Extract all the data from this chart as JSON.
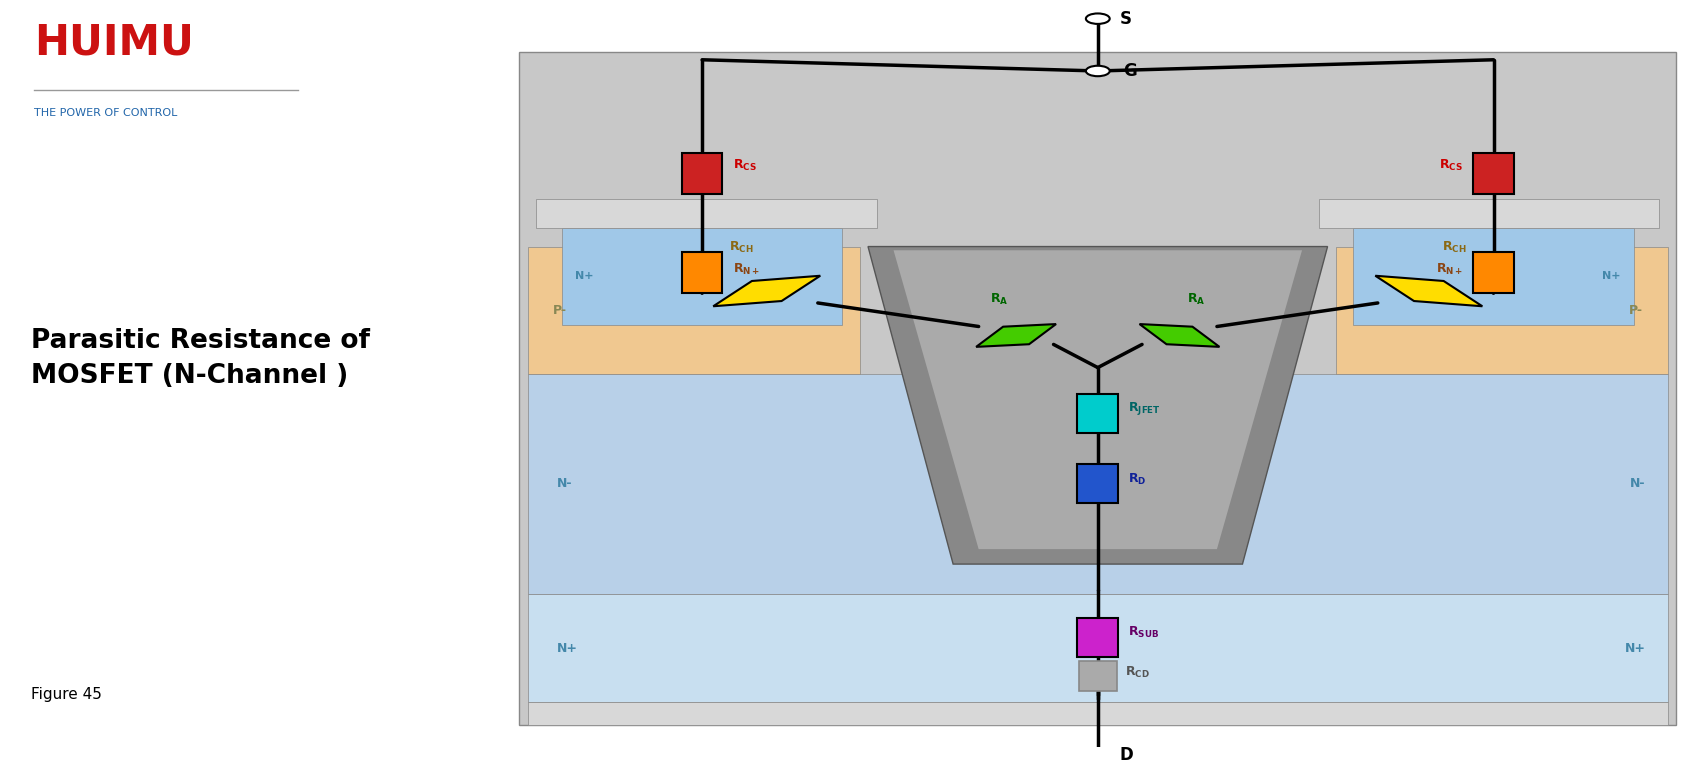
{
  "title": "Parasitic Resistance of\nMOSFET (N-Channel )",
  "figure_label": "Figure 45",
  "logo_text": "HUIMU",
  "logo_sub": "THE POWER OF CONTROL",
  "bg_color": "#ffffff",
  "layers": {
    "outer_color": "#c8c8c8",
    "nsub_color": "#c8dff0",
    "ndrift_color": "#b8d0e8",
    "pbody_color": "#f0c890",
    "nsource_color": "#a0c8e8",
    "metal_color": "#d8d8d8",
    "gate_color": "#888888",
    "gate_inner_color": "#aaaaaa"
  },
  "resistor_colors": {
    "Rcs": "#cc2222",
    "Rn": "#ff8800",
    "Rch": "#ffdd00",
    "Ra": "#44cc00",
    "Rjfet": "#00cccc",
    "Rd": "#2255cc",
    "Rsub": "#cc22cc",
    "Rcd": "#aaaaaa"
  },
  "label_colors": {
    "Rcs": "#cc0000",
    "Rn": "#8B4513",
    "Rch": "#8B6914",
    "Ra": "#006600",
    "Rjfet": "#006666",
    "Rd": "#112299",
    "Rsub": "#660066",
    "Rcd": "#555555"
  },
  "layer_label_color": "#4488aa",
  "pbody_label_color": "#888855",
  "wire_color": "#000000",
  "wire_lw": 2.5
}
